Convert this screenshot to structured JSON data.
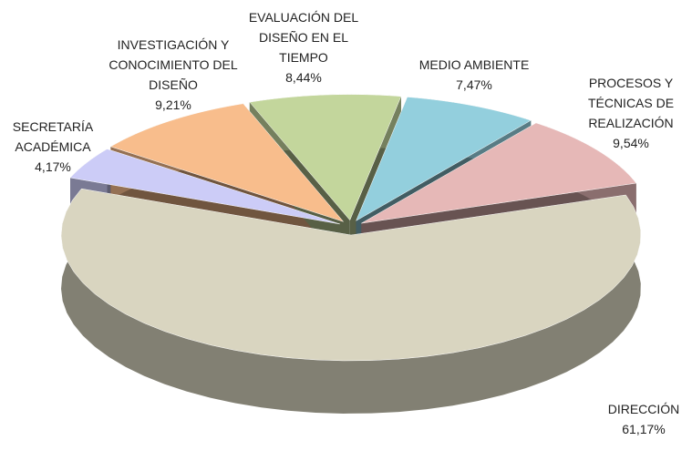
{
  "chart_data": {
    "type": "pie3d",
    "categories": [
      "DIRECCIÓN",
      "SECRETARÍA ACADÉMICA",
      "INVESTIGACIÓN Y CONOCIMIENTO DEL DISEÑO",
      "EVALUACIÓN DEL DISEÑO EN EL TIEMPO",
      "MEDIO AMBIENTE",
      "PROCESOS Y TÉCNICAS DE REALIZACIÓN"
    ],
    "values": [
      61.17,
      4.17,
      9.21,
      8.44,
      7.47,
      9.54
    ],
    "value_labels": [
      "61,17%",
      "4,17%",
      "9,21%",
      "8,44%",
      "7,47%",
      "9,54%"
    ],
    "colors": [
      "#d9d5c0",
      "#ccccf7",
      "#f8bd8c",
      "#c3d69c",
      "#93cfdd",
      "#e6b8b7"
    ]
  }
}
